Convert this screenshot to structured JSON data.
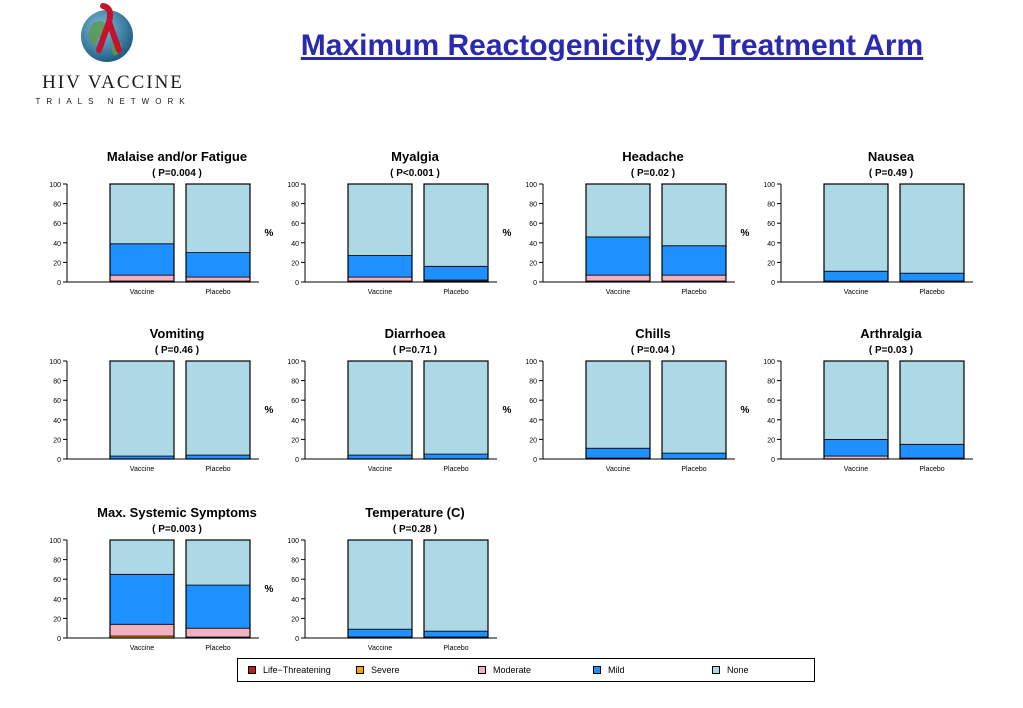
{
  "logo": {
    "name": "HIV VACCINE",
    "subtitle": "TRIALS NETWORK"
  },
  "title": "Maximum Reactogenicity by Treatment Arm",
  "legend": [
    {
      "label": "Life−Threatening",
      "color": "#b22222"
    },
    {
      "label": "Severe",
      "color": "#f5a800"
    },
    {
      "label": "Moderate",
      "color": "#f2b0c0"
    },
    {
      "label": "Mild",
      "color": "#1e90ff"
    },
    {
      "label": "None",
      "color": "#add8e6"
    }
  ],
  "chart_data": [
    {
      "type": "bar",
      "stacked": true,
      "title": "Malaise and/or Fatigue",
      "subtitle": "( P=0.004 )",
      "ylabel": "",
      "ylim": [
        0,
        100
      ],
      "yticks": [
        0,
        20,
        40,
        60,
        80,
        100
      ],
      "categories": [
        "Vaccine",
        "Placebo"
      ],
      "series": [
        {
          "name": "Life−Threatening",
          "values": [
            0,
            0
          ]
        },
        {
          "name": "Severe",
          "values": [
            1,
            1
          ]
        },
        {
          "name": "Moderate",
          "values": [
            6,
            4
          ]
        },
        {
          "name": "Mild",
          "values": [
            32,
            25
          ]
        },
        {
          "name": "None",
          "values": [
            61,
            70
          ]
        }
      ]
    },
    {
      "type": "bar",
      "stacked": true,
      "title": "Myalgia",
      "subtitle": "( P<0.001 )",
      "ylabel": "%",
      "ylim": [
        0,
        100
      ],
      "yticks": [
        0,
        20,
        40,
        60,
        80,
        100
      ],
      "categories": [
        "Vaccine",
        "Placebo"
      ],
      "series": [
        {
          "name": "Life−Threatening",
          "values": [
            0,
            0
          ]
        },
        {
          "name": "Severe",
          "values": [
            1,
            1
          ]
        },
        {
          "name": "Moderate",
          "values": [
            4,
            1
          ]
        },
        {
          "name": "Mild",
          "values": [
            22,
            14
          ]
        },
        {
          "name": "None",
          "values": [
            73,
            84
          ]
        }
      ]
    },
    {
      "type": "bar",
      "stacked": true,
      "title": "Headache",
      "subtitle": "( P=0.02 )",
      "ylabel": "%",
      "ylim": [
        0,
        100
      ],
      "yticks": [
        0,
        20,
        40,
        60,
        80,
        100
      ],
      "categories": [
        "Vaccine",
        "Placebo"
      ],
      "series": [
        {
          "name": "Life−Threatening",
          "values": [
            0,
            0
          ]
        },
        {
          "name": "Severe",
          "values": [
            1,
            1
          ]
        },
        {
          "name": "Moderate",
          "values": [
            6,
            6
          ]
        },
        {
          "name": "Mild",
          "values": [
            39,
            30
          ]
        },
        {
          "name": "None",
          "values": [
            54,
            63
          ]
        }
      ]
    },
    {
      "type": "bar",
      "stacked": true,
      "title": "Nausea",
      "subtitle": "( P=0.49 )",
      "ylabel": "%",
      "ylim": [
        0,
        100
      ],
      "yticks": [
        0,
        20,
        40,
        60,
        80,
        100
      ],
      "categories": [
        "Vaccine",
        "Placebo"
      ],
      "series": [
        {
          "name": "Life−Threatening",
          "values": [
            0,
            0
          ]
        },
        {
          "name": "Severe",
          "values": [
            0,
            0
          ]
        },
        {
          "name": "Moderate",
          "values": [
            1,
            1
          ]
        },
        {
          "name": "Mild",
          "values": [
            10,
            8
          ]
        },
        {
          "name": "None",
          "values": [
            89,
            91
          ]
        }
      ]
    },
    {
      "type": "bar",
      "stacked": true,
      "title": "Vomiting",
      "subtitle": "( P=0.46 )",
      "ylabel": "",
      "ylim": [
        0,
        100
      ],
      "yticks": [
        0,
        20,
        40,
        60,
        80,
        100
      ],
      "categories": [
        "Vaccine",
        "Placebo"
      ],
      "series": [
        {
          "name": "Life−Threatening",
          "values": [
            0,
            0
          ]
        },
        {
          "name": "Severe",
          "values": [
            0,
            0
          ]
        },
        {
          "name": "Moderate",
          "values": [
            0,
            0
          ]
        },
        {
          "name": "Mild",
          "values": [
            3,
            4
          ]
        },
        {
          "name": "None",
          "values": [
            97,
            96
          ]
        }
      ]
    },
    {
      "type": "bar",
      "stacked": true,
      "title": "Diarrhoea",
      "subtitle": "( P=0.71 )",
      "ylabel": "%",
      "ylim": [
        0,
        100
      ],
      "yticks": [
        0,
        20,
        40,
        60,
        80,
        100
      ],
      "categories": [
        "Vaccine",
        "Placebo"
      ],
      "series": [
        {
          "name": "Life−Threatening",
          "values": [
            0,
            0
          ]
        },
        {
          "name": "Severe",
          "values": [
            0,
            0
          ]
        },
        {
          "name": "Moderate",
          "values": [
            0,
            0
          ]
        },
        {
          "name": "Mild",
          "values": [
            4,
            5
          ]
        },
        {
          "name": "None",
          "values": [
            96,
            95
          ]
        }
      ]
    },
    {
      "type": "bar",
      "stacked": true,
      "title": "Chills",
      "subtitle": "( P=0.04 )",
      "ylabel": "%",
      "ylim": [
        0,
        100
      ],
      "yticks": [
        0,
        20,
        40,
        60,
        80,
        100
      ],
      "categories": [
        "Vaccine",
        "Placebo"
      ],
      "series": [
        {
          "name": "Life−Threatening",
          "values": [
            0,
            0
          ]
        },
        {
          "name": "Severe",
          "values": [
            0,
            0
          ]
        },
        {
          "name": "Moderate",
          "values": [
            1,
            0
          ]
        },
        {
          "name": "Mild",
          "values": [
            10,
            6
          ]
        },
        {
          "name": "None",
          "values": [
            89,
            94
          ]
        }
      ]
    },
    {
      "type": "bar",
      "stacked": true,
      "title": "Arthralgia",
      "subtitle": "( P=0.03 )",
      "ylabel": "%",
      "ylim": [
        0,
        100
      ],
      "yticks": [
        0,
        20,
        40,
        60,
        80,
        100
      ],
      "categories": [
        "Vaccine",
        "Placebo"
      ],
      "series": [
        {
          "name": "Life−Threatening",
          "values": [
            0,
            0
          ]
        },
        {
          "name": "Severe",
          "values": [
            0,
            0
          ]
        },
        {
          "name": "Moderate",
          "values": [
            3,
            1
          ]
        },
        {
          "name": "Mild",
          "values": [
            17,
            14
          ]
        },
        {
          "name": "None",
          "values": [
            80,
            85
          ]
        }
      ]
    },
    {
      "type": "bar",
      "stacked": true,
      "title": "Max. Systemic Symptoms",
      "subtitle": "( P=0.003 )",
      "ylabel": "",
      "ylim": [
        0,
        100
      ],
      "yticks": [
        0,
        20,
        40,
        60,
        80,
        100
      ],
      "categories": [
        "Vaccine",
        "Placebo"
      ],
      "series": [
        {
          "name": "Life−Threatening",
          "values": [
            0,
            0
          ]
        },
        {
          "name": "Severe",
          "values": [
            2,
            1
          ]
        },
        {
          "name": "Moderate",
          "values": [
            12,
            9
          ]
        },
        {
          "name": "Mild",
          "values": [
            51,
            44
          ]
        },
        {
          "name": "None",
          "values": [
            35,
            46
          ]
        }
      ]
    },
    {
      "type": "bar",
      "stacked": true,
      "title": "Temperature (C)",
      "subtitle": "( P=0.28 )",
      "ylabel": "%",
      "ylim": [
        0,
        100
      ],
      "yticks": [
        0,
        20,
        40,
        60,
        80,
        100
      ],
      "categories": [
        "Vaccine",
        "Placebo"
      ],
      "series": [
        {
          "name": "Life−Threatening",
          "values": [
            0,
            0
          ]
        },
        {
          "name": "Severe",
          "values": [
            0,
            0
          ]
        },
        {
          "name": "Moderate",
          "values": [
            1,
            1
          ]
        },
        {
          "name": "Mild",
          "values": [
            8,
            6
          ]
        },
        {
          "name": "None",
          "values": [
            91,
            93
          ]
        }
      ]
    }
  ]
}
